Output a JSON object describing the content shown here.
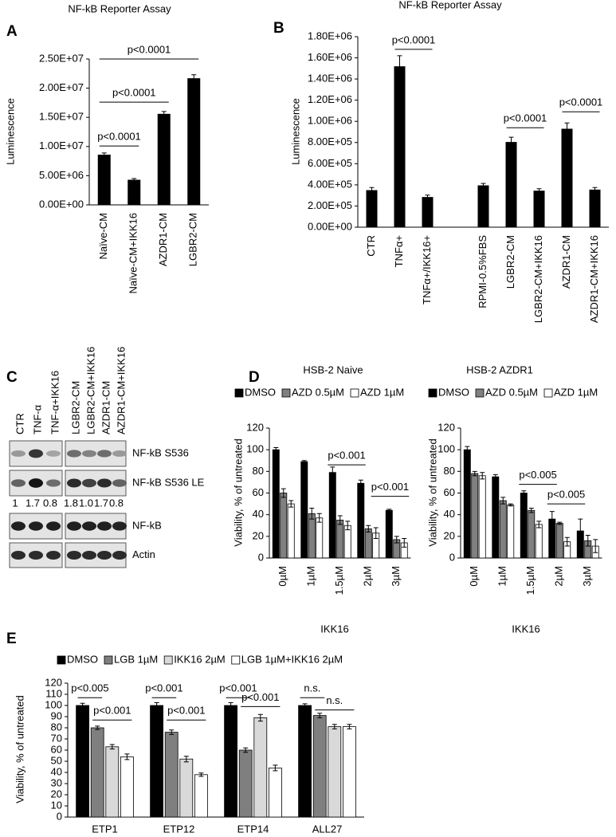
{
  "chart_data": [
    {
      "type": "bar",
      "panel": "A",
      "title": "NF-kB Reporter Assay",
      "ylabel": "Luminescence",
      "categories": [
        "Naïve-CM",
        "Naïve-CM+IKK16",
        "AZDR1-CM",
        "LGBR2-CM"
      ],
      "values": [
        8600000,
        4300000,
        15600000,
        21700000
      ],
      "errors": [
        300000,
        200000,
        400000,
        600000
      ],
      "color": "#000000",
      "ylim": [
        0,
        25000000
      ],
      "yticks": [
        {
          "value": 0,
          "label": "0.00E+00"
        },
        {
          "value": 5000000,
          "label": "5.00E+06"
        },
        {
          "value": 10000000,
          "label": "1.00E+07"
        },
        {
          "value": 15000000,
          "label": "1.50E+07"
        },
        {
          "value": 20000000,
          "label": "2.00E+07"
        },
        {
          "value": 25000000,
          "label": "2.50E+07"
        }
      ],
      "annotations": [
        {
          "text": "p<0.0001",
          "y": 10100000,
          "from": "Naïve-CM",
          "to": "Naïve-CM+IKK16"
        },
        {
          "text": "p<0.0001",
          "y": 17600000,
          "from": "Naïve-CM",
          "to": "AZDR1-CM"
        },
        {
          "text": "p<0.0001",
          "y": 25000000,
          "from": "Naïve-CM",
          "to": "LGBR2-CM"
        }
      ]
    },
    {
      "type": "bar",
      "panel": "B",
      "title": "NF-kB Reporter Assay",
      "ylabel": "Luminescence",
      "categories": [
        "CTR",
        "TNFα+",
        "TNFα+/IKK16+",
        null,
        "RPMI-0.5%FBS",
        "LGBR2-CM",
        "LGBR2-CM+IKK16",
        "AZDR1-CM",
        "AZDR1-CM+IKK16"
      ],
      "values": [
        350000,
        1520000,
        285000,
        null,
        395000,
        805000,
        345000,
        930000,
        355000
      ],
      "errors": [
        25000,
        100000,
        18000,
        null,
        18000,
        45000,
        18000,
        55000,
        20000
      ],
      "color": "#000000",
      "ylim": [
        0,
        1800000
      ],
      "yticks": [
        {
          "value": 0,
          "label": "0.00E+00"
        },
        {
          "value": 200000,
          "label": "2.00E+05"
        },
        {
          "value": 400000,
          "label": "4.00E+05"
        },
        {
          "value": 600000,
          "label": "6.00E+05"
        },
        {
          "value": 800000,
          "label": "8.00E+05"
        },
        {
          "value": 1000000,
          "label": "1.00E+06"
        },
        {
          "value": 1200000,
          "label": "1.20E+06"
        },
        {
          "value": 1400000,
          "label": "1.40E+06"
        },
        {
          "value": 1600000,
          "label": "1.60E+06"
        },
        {
          "value": 1800000,
          "label": "1.80E+06"
        }
      ],
      "annotations": [
        {
          "text": "p<0.0001",
          "y": 1680000,
          "from": "TNFα+",
          "to": "TNFα+/IKK16+"
        },
        {
          "text": "p<0.0001",
          "y": 940000,
          "from": "LGBR2-CM",
          "to": "LGBR2-CM+IKK16"
        },
        {
          "text": "p<0.0001",
          "y": 1090000,
          "from": "AZDR1-CM",
          "to": "AZDR1-CM+IKK16"
        }
      ]
    },
    {
      "type": "blot",
      "panel": "C",
      "lanes": [
        "CTR",
        "TNF-α",
        "TNF-α+IKK16",
        "LGBR2-CM",
        "LGBR2-CM+IKK16",
        "AZDR1-CM",
        "AZDR1-CM+IKK16"
      ],
      "bands": [
        "NF-kB S536",
        "NF-kB S536 LE",
        "NF-kB",
        "Actin"
      ],
      "ratios": [
        "1",
        "1.7",
        "0.8",
        "1.8",
        "1.0",
        "1.7",
        "0.8"
      ]
    },
    {
      "type": "grouped_bar",
      "panel": "D",
      "title": "HSB-2 Naive",
      "xlabel": "IKK16",
      "ylabel": "Viability, % of untreated",
      "categories": [
        "0µM",
        "1µM",
        "1.5µM",
        "2µM",
        "3µM"
      ],
      "series": [
        {
          "name": "DMSO",
          "color": "#000000",
          "values": [
            100,
            89,
            79,
            69,
            44
          ],
          "errors": [
            2,
            1,
            5,
            3,
            1
          ]
        },
        {
          "name": "AZD 0.5µM",
          "color": "#808080",
          "values": [
            60,
            41,
            35,
            27,
            17
          ],
          "errors": [
            4,
            5,
            4,
            3,
            3
          ]
        },
        {
          "name": "AZD 1µM",
          "color": "#ffffff",
          "values": [
            50,
            37,
            30,
            23,
            14
          ],
          "errors": [
            3,
            4,
            4,
            5,
            4
          ]
        }
      ],
      "ylim": [
        0,
        120
      ],
      "yticks": [
        0,
        20,
        40,
        60,
        80,
        100,
        120
      ],
      "annotations": [
        {
          "text": "p<0.001",
          "y": 86,
          "from": [
            "1.5µM",
            "DMSO"
          ],
          "to": [
            "2µM",
            "DMSO"
          ]
        },
        {
          "text": "p<0.001",
          "y": 57,
          "from": [
            "2µM",
            "AZD 1µM"
          ],
          "to": [
            "3µM",
            "AZD 1µM"
          ]
        }
      ]
    },
    {
      "type": "grouped_bar",
      "title": "HSB-2 AZDR1",
      "xlabel": "IKK16",
      "ylabel": "Viability, % of untreated",
      "categories": [
        "0µM",
        "1µM",
        "1.5µM",
        "2µM",
        "3µM"
      ],
      "series": [
        {
          "name": "DMSO",
          "color": "#000000",
          "values": [
            100,
            75,
            60,
            36,
            25
          ],
          "errors": [
            3,
            2,
            2,
            7,
            11
          ]
        },
        {
          "name": "AZD 0.5µM",
          "color": "#808080",
          "values": [
            78,
            53,
            44,
            32,
            16
          ],
          "errors": [
            2,
            3,
            2,
            1,
            5
          ]
        },
        {
          "name": "AZD 1µM",
          "color": "#ffffff",
          "values": [
            76,
            49,
            31,
            15,
            11
          ],
          "errors": [
            3,
            1,
            3,
            4,
            6
          ]
        }
      ],
      "ylim": [
        0,
        120
      ],
      "yticks": [
        0,
        20,
        40,
        60,
        80,
        100,
        120
      ],
      "annotations": [
        {
          "text": "p<0.005",
          "y": 68,
          "from": [
            "1.5µM",
            "DMSO"
          ],
          "to": [
            "2µM",
            "DMSO"
          ]
        },
        {
          "text": "p<0.005",
          "y": 50,
          "from": [
            "2µM",
            "DMSO"
          ],
          "to": [
            "3µM",
            "DMSO"
          ]
        }
      ]
    },
    {
      "type": "grouped_bar",
      "panel": "E",
      "ylabel": "Viability, % of untreated",
      "categories": [
        "ETP1",
        "ETP12",
        "ETP14",
        "ALL27"
      ],
      "series": [
        {
          "name": "DMSO",
          "color": "#000000",
          "values": [
            100,
            100,
            100,
            100
          ],
          "errors": [
            2,
            2.5,
            2.5,
            1.5
          ]
        },
        {
          "name": "LGB 1µM",
          "color": "#7f7f7f",
          "values": [
            80,
            76,
            60,
            91
          ],
          "errors": [
            1.5,
            2,
            2,
            2
          ]
        },
        {
          "name": "IKK16 2µM",
          "color": "#d9d9d9",
          "values": [
            63,
            52,
            89,
            81
          ],
          "errors": [
            2,
            2.5,
            3,
            2
          ]
        },
        {
          "name": "LGB 1µM+IKK16 2µM",
          "color": "#ffffff",
          "values": [
            54,
            38,
            44,
            81
          ],
          "errors": [
            2.5,
            1.5,
            2.5,
            2
          ]
        }
      ],
      "ylim": [
        0,
        120
      ],
      "yticks": [
        0,
        10,
        20,
        30,
        40,
        50,
        60,
        70,
        80,
        90,
        100,
        110,
        120
      ],
      "annotations": [
        {
          "text": "p<0.005",
          "y": 107,
          "from": [
            "ETP1",
            "DMSO"
          ],
          "to": [
            "ETP1",
            "LGB 1µM"
          ]
        },
        {
          "text": "p<0.001",
          "y": 87,
          "from": [
            "ETP1",
            "LGB 1µM"
          ],
          "to": [
            "ETP1",
            "LGB 1µM+IKK16 2µM"
          ]
        },
        {
          "text": "p<0.001",
          "y": 107,
          "from": [
            "ETP12",
            "DMSO"
          ],
          "to": [
            "ETP12",
            "LGB 1µM"
          ]
        },
        {
          "text": "p<0.001",
          "y": 87,
          "from": [
            "ETP12",
            "LGB 1µM"
          ],
          "to": [
            "ETP12",
            "LGB 1µM+IKK16 2µM"
          ]
        },
        {
          "text": "p<0.001",
          "y": 107,
          "from": [
            "ETP14",
            "DMSO"
          ],
          "to": [
            "ETP14",
            "LGB 1µM"
          ]
        },
        {
          "text": "p<0.001",
          "y": 99,
          "from": [
            "ETP14",
            "LGB 1µM"
          ],
          "to": [
            "ETP14",
            "LGB 1µM+IKK16 2µM"
          ]
        },
        {
          "text": "n.s.",
          "y": 107,
          "from": [
            "ALL27",
            "DMSO"
          ],
          "to": [
            "ALL27",
            "LGB 1µM"
          ]
        },
        {
          "text": "n.s.",
          "y": 96,
          "from": [
            "ALL27",
            "LGB 1µM"
          ],
          "to": [
            "ALL27",
            "LGB 1µM+IKK16 2µM"
          ]
        }
      ]
    }
  ]
}
